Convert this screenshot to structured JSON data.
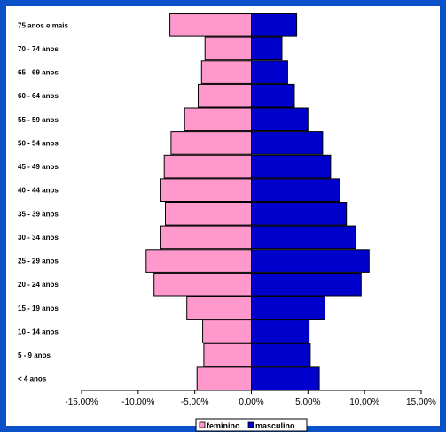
{
  "chart_data": {
    "type": "bar",
    "orientation": "horizontal",
    "categories": [
      "75 anos e mais",
      "70 - 74 anos",
      "65 - 69 anos",
      "60 - 64 anos",
      "55 - 59 anos",
      "50 - 54 anos",
      "45 - 49 anos",
      "40 - 44 anos",
      "35 - 39 anos",
      "30 - 34 anos",
      "25 - 29 anos",
      "20 - 24 anos",
      "15 - 19 anos",
      "10 - 14 anos",
      "5 - 9 anos",
      "< 4 anos"
    ],
    "series": [
      {
        "name": "feminino",
        "color": "#ff99cc",
        "values": [
          -7.2,
          -4.1,
          -4.4,
          -4.7,
          -5.9,
          -7.1,
          -7.7,
          -8.0,
          -7.6,
          -8.0,
          -9.3,
          -8.6,
          -5.7,
          -4.3,
          -4.2,
          -4.8
        ]
      },
      {
        "name": "masculino",
        "color": "#0000cc",
        "values": [
          4.0,
          2.7,
          3.2,
          3.8,
          5.0,
          6.3,
          7.0,
          7.8,
          8.4,
          9.2,
          10.4,
          9.7,
          6.5,
          5.1,
          5.2,
          6.0
        ]
      }
    ],
    "xlim": [
      -15,
      15
    ],
    "xticks": [
      "-15,00%",
      "-10,00%",
      "-5,00%",
      "0,00%",
      "5,00%",
      "10,00%",
      "15,00%"
    ],
    "xtick_values": [
      -15,
      -10,
      -5,
      0,
      5,
      10,
      15
    ],
    "grid": false,
    "legend": "bottom"
  }
}
